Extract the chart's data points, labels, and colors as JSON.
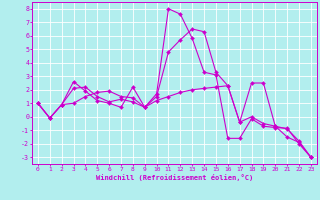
{
  "xlabel": "Windchill (Refroidissement éolien,°C)",
  "xlim": [
    -0.5,
    23.5
  ],
  "ylim": [
    -3.5,
    8.5
  ],
  "yticks": [
    -3,
    -2,
    -1,
    0,
    1,
    2,
    3,
    4,
    5,
    6,
    7,
    8
  ],
  "xticks": [
    0,
    1,
    2,
    3,
    4,
    5,
    6,
    7,
    8,
    9,
    10,
    11,
    12,
    13,
    14,
    15,
    16,
    17,
    18,
    19,
    20,
    21,
    22,
    23
  ],
  "bg_color": "#b2eeee",
  "grid_color": "#ffffff",
  "line_color": "#cc00cc",
  "series": [
    {
      "x": [
        0,
        1,
        2,
        3,
        4,
        5,
        6,
        7,
        8,
        9,
        10,
        11,
        12,
        13,
        14,
        15,
        16,
        17,
        18,
        19,
        20,
        21,
        22,
        23
      ],
      "y": [
        1.0,
        -0.1,
        0.9,
        2.6,
        1.9,
        1.2,
        1.0,
        0.7,
        2.2,
        0.7,
        1.7,
        8.0,
        7.6,
        5.8,
        3.3,
        3.1,
        -1.6,
        -1.6,
        -0.15,
        -0.7,
        -0.8,
        -0.85,
        -2.0,
        -3.0
      ]
    },
    {
      "x": [
        0,
        1,
        2,
        3,
        4,
        5,
        6,
        7,
        8,
        9,
        10,
        11,
        12,
        13,
        14,
        15,
        16,
        17,
        18,
        19,
        20,
        21,
        22,
        23
      ],
      "y": [
        1.0,
        -0.1,
        0.9,
        2.1,
        2.2,
        1.5,
        1.1,
        1.3,
        1.1,
        0.7,
        1.5,
        4.8,
        5.7,
        6.5,
        6.3,
        3.3,
        2.3,
        -0.4,
        2.5,
        2.5,
        -0.7,
        -1.5,
        -1.9,
        -3.0
      ]
    },
    {
      "x": [
        0,
        1,
        2,
        3,
        4,
        5,
        6,
        7,
        8,
        9,
        10,
        11,
        12,
        13,
        14,
        15,
        16,
        17,
        18,
        19,
        20,
        21,
        22,
        23
      ],
      "y": [
        1.0,
        -0.1,
        0.9,
        1.0,
        1.5,
        1.8,
        1.9,
        1.5,
        1.4,
        0.7,
        1.2,
        1.5,
        1.8,
        2.0,
        2.1,
        2.2,
        2.3,
        -0.4,
        0.0,
        -0.5,
        -0.7,
        -0.9,
        -1.8,
        -3.0
      ]
    }
  ]
}
